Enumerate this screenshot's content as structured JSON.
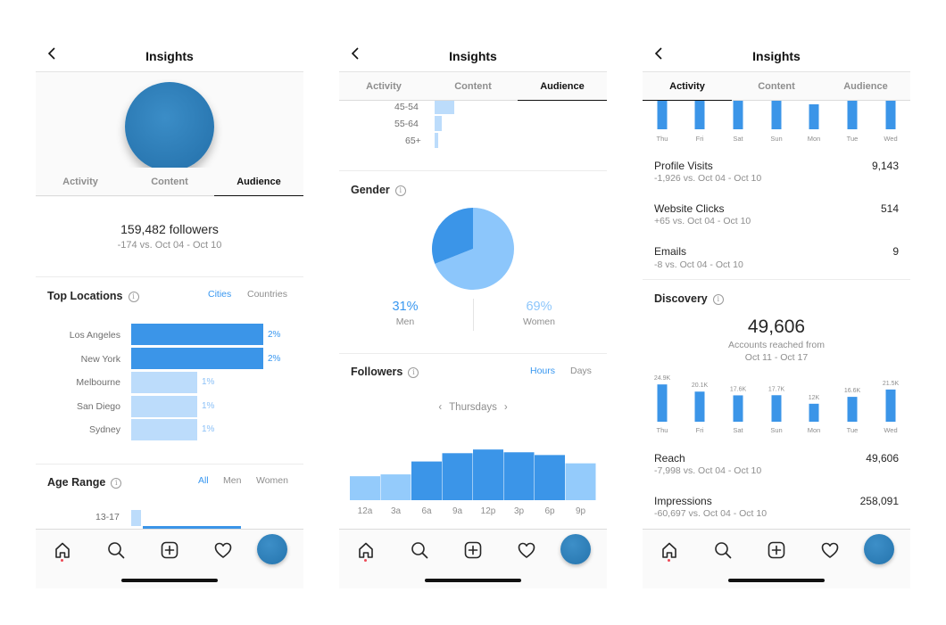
{
  "common": {
    "title": "Insights",
    "tabs": [
      "Activity",
      "Content",
      "Audience"
    ],
    "accent": "#3897f0",
    "bar_dark": "#3b95e8",
    "bar_light": "#bcdcfb",
    "avatar_color": "#2a78b2"
  },
  "panel1": {
    "followers_count": "159,482 followers",
    "followers_change": "-174 vs. Oct 04 - Oct 10",
    "top_locations": {
      "title": "Top Locations",
      "toggle": [
        "Cities",
        "Countries"
      ],
      "items": [
        {
          "label": "Los Angeles",
          "pct": "2%",
          "value": 2,
          "highlight": true
        },
        {
          "label": "New York",
          "pct": "2%",
          "value": 2,
          "highlight": true
        },
        {
          "label": "Melbourne",
          "pct": "1%",
          "value": 1,
          "highlight": false
        },
        {
          "label": "San Diego",
          "pct": "1%",
          "value": 1,
          "highlight": false
        },
        {
          "label": "Sydney",
          "pct": "1%",
          "value": 1,
          "highlight": false
        }
      ]
    },
    "age_range": {
      "title": "Age Range",
      "toggle": [
        "All",
        "Men",
        "Women"
      ],
      "first_label": "13-17"
    }
  },
  "panel2": {
    "age_labels": [
      "45-54",
      "55-64",
      "65+"
    ],
    "gender": {
      "title": "Gender",
      "men_pct": "31%",
      "men_label": "Men",
      "women_pct": "69%",
      "women_label": "Women",
      "men_value": 31,
      "women_value": 69
    },
    "followers": {
      "title": "Followers",
      "toggle": [
        "Hours",
        "Days"
      ],
      "day": "Thursdays",
      "chart_data": {
        "type": "bar",
        "title": "Followers",
        "categories": [
          "12a",
          "3a",
          "6a",
          "9a",
          "12p",
          "3p",
          "6p",
          "9p"
        ],
        "values": [
          26,
          28,
          42,
          51,
          55,
          52,
          49,
          40
        ]
      }
    }
  },
  "panel3": {
    "top_days": [
      "Thu",
      "Fri",
      "Sat",
      "Sun",
      "Mon",
      "Tue",
      "Wed"
    ],
    "metrics_top": [
      {
        "name": "Profile Visits",
        "sub": "-1,926 vs. Oct 04 - Oct 10",
        "value": "9,143"
      },
      {
        "name": "Website Clicks",
        "sub": "+65 vs. Oct 04 - Oct 10",
        "value": "514"
      },
      {
        "name": "Emails",
        "sub": "-8 vs. Oct 04 - Oct 10",
        "value": "9"
      }
    ],
    "discovery": {
      "title": "Discovery",
      "value": "49,606",
      "label_line1": "Accounts reached from",
      "label_line2": "Oct 11 - Oct 17"
    },
    "reach_chart": {
      "chart_data": {
        "type": "bar",
        "title": "Accounts reached",
        "categories": [
          "Thu",
          "Fri",
          "Sat",
          "Sun",
          "Mon",
          "Tue",
          "Wed"
        ],
        "values": [
          24.9,
          20.1,
          17.6,
          17.7,
          12,
          16.6,
          21.5
        ],
        "labels": [
          "24.9K",
          "20.1K",
          "17.6K",
          "17.7K",
          "12K",
          "16.6K",
          "21.5K"
        ]
      }
    },
    "metrics_bottom": [
      {
        "name": "Reach",
        "sub": "-7,998 vs. Oct 04 - Oct 10",
        "value": "49,606"
      },
      {
        "name": "Impressions",
        "sub": "-60,697 vs. Oct 04 - Oct 10",
        "value": "258,091"
      }
    ]
  }
}
